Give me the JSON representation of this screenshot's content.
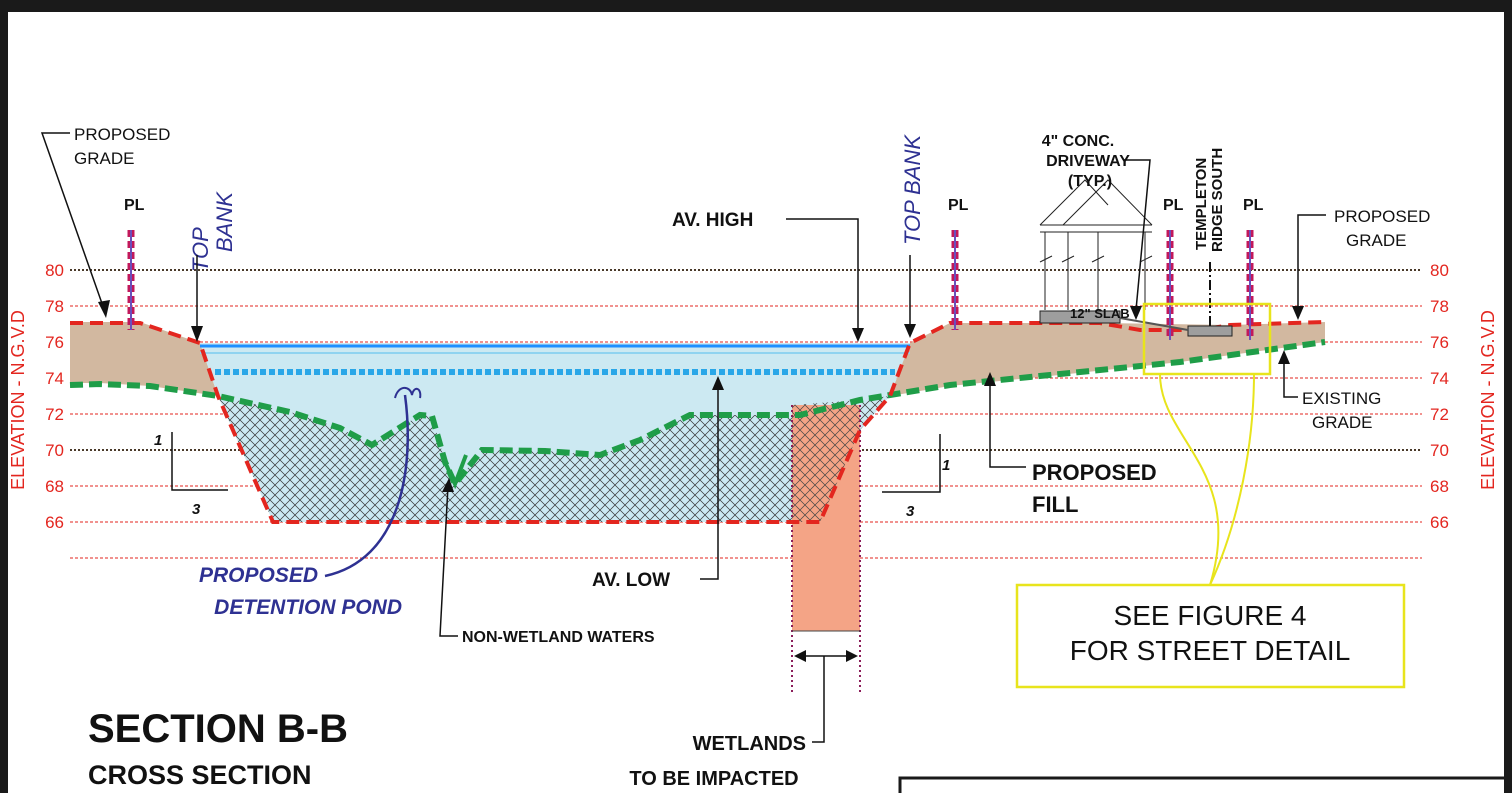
{
  "title": "SECTION B-B",
  "subtitle": "CROSS SECTION",
  "axis": {
    "left_label": "ELEVATION - N.G.V.D",
    "right_label": "ELEVATION - N.G.V.D",
    "ticks": [
      "80",
      "78",
      "76",
      "74",
      "72",
      "70",
      "68",
      "66"
    ]
  },
  "labels": {
    "proposed_grade_left_1": "PROPOSED",
    "proposed_grade_left_2": "GRADE",
    "proposed_grade_right_1": "PROPOSED",
    "proposed_grade_right_2": "GRADE",
    "pl_1": "PL",
    "pl_2": "PL",
    "pl_3": "PL",
    "pl_4": "PL",
    "top_bank_left_1": "TOP",
    "top_bank_left_2": "BANK",
    "top_bank_right": "TOP BANK",
    "av_high": "AV. HIGH",
    "av_low": "AV. LOW",
    "driveway_1": "4\" CONC.",
    "driveway_2": "DRIVEWAY",
    "driveway_3": "(TYP.)",
    "street_1": "TEMPLETON",
    "street_2": "RIDGE SOUTH",
    "slab": "12\" SLAB",
    "existing_grade_1": "EXISTING",
    "existing_grade_2": "GRADE",
    "proposed_fill_1": "PROPOSED",
    "proposed_fill_2": "FILL",
    "pond_1": "PROPOSED",
    "pond_2": "DETENTION POND",
    "non_wetland": "NON-WETLAND WATERS",
    "wetlands_1": "WETLANDS",
    "wetlands_2": "TO BE IMPACTED",
    "see_figure_1": "SEE FIGURE 4",
    "see_figure_2": "FOR STREET DETAIL",
    "slope_left_rise": "1",
    "slope_left_run": "3",
    "slope_right_rise": "1",
    "slope_right_run": "3"
  },
  "colors": {
    "frame": "#1a1a1a",
    "proposed_line": "#e3261f",
    "existing_line": "#1f9d48",
    "fill": "#d2b8a0",
    "water": "#cce9f2",
    "wetland": "#f4a486",
    "callout": "#e8e41c",
    "accent_blue": "#2e3192"
  }
}
